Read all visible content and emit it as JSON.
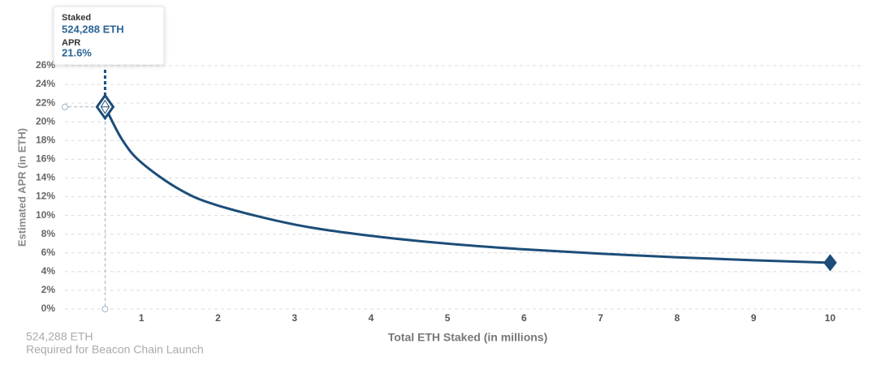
{
  "chart_data": {
    "type": "line",
    "x_label": "Total ETH Staked  (in millions)",
    "y_label": "Estimated APR (in ETH)",
    "x": [
      0.524288,
      0.75,
      1,
      1.5,
      2,
      3,
      4,
      5,
      6,
      7,
      8,
      9,
      10
    ],
    "series": [
      {
        "color": "#1c4d78",
        "values": [
          21.6,
          18.06,
          15.64,
          12.77,
          11.06,
          9.03,
          7.82,
          6.99,
          6.38,
          5.91,
          5.53,
          5.21,
          4.95
        ]
      }
    ],
    "xlim": [
      0,
      10.4
    ],
    "ylim": [
      0,
      26
    ],
    "xticks": [
      1,
      2,
      3,
      4,
      5,
      6,
      7,
      8,
      9,
      10
    ],
    "yticks": [
      {
        "value": 0,
        "label": "0%"
      },
      {
        "value": 2,
        "label": "2%"
      },
      {
        "value": 4,
        "label": "4%"
      },
      {
        "value": 6,
        "label": "6%"
      },
      {
        "value": 8,
        "label": "8%"
      },
      {
        "value": 10,
        "label": "10%"
      },
      {
        "value": 12,
        "label": "12%"
      },
      {
        "value": 14,
        "label": "14%"
      },
      {
        "value": 16,
        "label": "16%"
      },
      {
        "value": 18,
        "label": "18%"
      },
      {
        "value": 20,
        "label": "20%"
      },
      {
        "value": 22,
        "label": "22%"
      },
      {
        "value": 24,
        "label": "24%"
      },
      {
        "value": 26,
        "label": "26%"
      }
    ],
    "grid": true,
    "tooltip": {
      "x_name": "Staked",
      "x_label": "524,288 ETH",
      "y_name": "APR",
      "y_label": "21.6%"
    },
    "footnote": {
      "value_label": "524,288 ETH",
      "text": "Required for Beacon Chain Launch"
    }
  }
}
